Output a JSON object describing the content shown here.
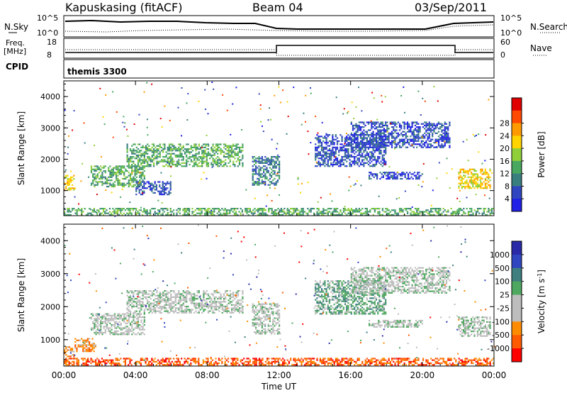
{
  "header": {
    "station": "Kapuskasing (fitACF)",
    "beam": "Beam 04",
    "date": "03/Sep/2011"
  },
  "strips": {
    "nsky_label": "N.Sky",
    "nsky_ticks": [
      "10^5",
      "10^0"
    ],
    "nsearch_label": "N.Search",
    "nsearch_ticks": [
      "10^5",
      "10^0"
    ],
    "freq_label": "Freq.",
    "freq_unit": "[MHz]",
    "freq_ticks": [
      "18",
      "8"
    ],
    "nave_label": "Nave",
    "nave_ticks": [
      "60",
      "0"
    ],
    "cpid_label": "CPID",
    "cpid_value": "themis 3300"
  },
  "colors": {
    "power_scale": [
      "#1f1fe6",
      "#2f46c0",
      "#3a7f7f",
      "#49a860",
      "#8fcf3a",
      "#ffd400",
      "#ff9a00",
      "#ff4a00",
      "#e00000"
    ],
    "velocity_scale": [
      "#2a2aa8",
      "#2f46c0",
      "#3f7f7f",
      "#4fa860",
      "#bdbdbd",
      "#bdbdbd",
      "#ff8c00",
      "#ff5a00",
      "#ff0000"
    ]
  },
  "chart_data": [
    {
      "type": "heatmap",
      "id": "power",
      "x_ticks": [
        "00:00",
        "04:00",
        "08:00",
        "12:00",
        "16:00",
        "20:00",
        "00:00"
      ],
      "y_label": "Slant Range [km]",
      "y_ticks": [
        "1000",
        "2000",
        "3000",
        "4000"
      ],
      "ylim": [
        200,
        4500
      ],
      "colorbar_label": "Power [dB]",
      "colorbar_ticks": [
        "4",
        "8",
        "12",
        "16",
        "20",
        "24",
        "28"
      ],
      "regions": [
        {
          "t0": 0.0,
          "t1": 0.6,
          "r0": 1050,
          "r1": 1500,
          "level": 5
        },
        {
          "t0": 1.5,
          "t1": 4.5,
          "r0": 1150,
          "r1": 1800,
          "level": 3
        },
        {
          "t0": 3.5,
          "t1": 10.0,
          "r0": 1800,
          "r1": 2500,
          "level": 3
        },
        {
          "t0": 4.0,
          "t1": 6.0,
          "r0": 900,
          "r1": 1300,
          "level": 1
        },
        {
          "t0": 10.5,
          "t1": 12.0,
          "r0": 1200,
          "r1": 2100,
          "level": 2
        },
        {
          "t0": 14.0,
          "t1": 18.0,
          "r0": 1800,
          "r1": 2800,
          "level": 1
        },
        {
          "t0": 16.0,
          "t1": 21.5,
          "r0": 2400,
          "r1": 3200,
          "level": 1
        },
        {
          "t0": 17.0,
          "t1": 20.0,
          "r0": 1400,
          "r1": 1600,
          "level": 1
        },
        {
          "t0": 22.0,
          "t1": 23.8,
          "r0": 1100,
          "r1": 1700,
          "level": 5
        },
        {
          "t0": 0.0,
          "t1": 24.0,
          "r0": 250,
          "r1": 450,
          "level": 3
        }
      ]
    },
    {
      "type": "heatmap",
      "id": "velocity",
      "x_label": "Time UT",
      "x_ticks": [
        "00:00",
        "04:00",
        "08:00",
        "12:00",
        "16:00",
        "20:00",
        "00:00"
      ],
      "y_label": "Slant Range [km]",
      "y_ticks": [
        "1000",
        "2000",
        "3000",
        "4000"
      ],
      "ylim": [
        200,
        4500
      ],
      "colorbar_label": "Velocity [m s",
      "colorbar_label_sup": "-1",
      "colorbar_label_tail": "]",
      "colorbar_ticks": [
        "1000",
        "500",
        "100",
        "25",
        "-25",
        "-100",
        "-500",
        "-1000"
      ],
      "regions": [
        {
          "t0": 0.0,
          "t1": 0.6,
          "r0": 500,
          "r1": 800,
          "level": 6
        },
        {
          "t0": 0.6,
          "t1": 1.8,
          "r0": 650,
          "r1": 1050,
          "level": 6
        },
        {
          "t0": 1.5,
          "t1": 4.5,
          "r0": 1150,
          "r1": 1800,
          "level": 4
        },
        {
          "t0": 3.5,
          "t1": 10.0,
          "r0": 1800,
          "r1": 2500,
          "level": 4
        },
        {
          "t0": 10.5,
          "t1": 12.0,
          "r0": 1200,
          "r1": 2100,
          "level": 4
        },
        {
          "t0": 14.0,
          "t1": 18.0,
          "r0": 1800,
          "r1": 2800,
          "level": 3
        },
        {
          "t0": 16.0,
          "t1": 21.5,
          "r0": 2400,
          "r1": 3200,
          "level": 4
        },
        {
          "t0": 17.0,
          "t1": 20.0,
          "r0": 1400,
          "r1": 1600,
          "level": 4
        },
        {
          "t0": 22.0,
          "t1": 23.8,
          "r0": 1100,
          "r1": 1700,
          "level": 4
        },
        {
          "t0": 0.0,
          "t1": 24.0,
          "r0": 250,
          "r1": 450,
          "level": 7
        }
      ]
    }
  ]
}
